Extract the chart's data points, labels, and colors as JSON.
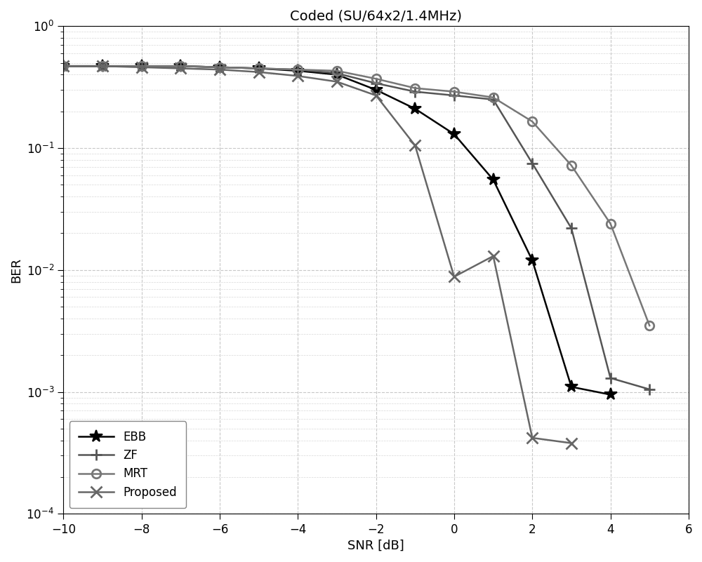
{
  "title": "Coded (SU/64x2/1.4MHz)",
  "xlabel": "SNR [dB]",
  "ylabel": "BER",
  "xlim": [
    -10,
    6
  ],
  "ylim": [
    0.0001,
    1.0
  ],
  "xticks": [
    -10,
    -8,
    -6,
    -4,
    -2,
    0,
    2,
    4,
    6
  ],
  "EBB": {
    "label": "EBB",
    "color": "#000000",
    "marker": "*",
    "markersize": 13,
    "linewidth": 1.8,
    "x": [
      -10,
      -9,
      -8,
      -7,
      -6,
      -5,
      -4,
      -3,
      -2,
      -1,
      0,
      1,
      2,
      3,
      4
    ],
    "y": [
      0.47,
      0.47,
      0.47,
      0.47,
      0.46,
      0.45,
      0.43,
      0.4,
      0.3,
      0.21,
      0.13,
      0.055,
      0.012,
      0.0011,
      0.00095
    ]
  },
  "ZF": {
    "label": "ZF",
    "color": "#555555",
    "marker": "+",
    "markersize": 12,
    "linewidth": 1.8,
    "x": [
      -10,
      -9,
      -8,
      -7,
      -6,
      -5,
      -4,
      -3,
      -2,
      -1,
      0,
      1,
      2,
      3,
      4,
      5
    ],
    "y": [
      0.47,
      0.47,
      0.47,
      0.47,
      0.46,
      0.45,
      0.44,
      0.41,
      0.34,
      0.29,
      0.27,
      0.25,
      0.075,
      0.022,
      0.0013,
      0.00105
    ]
  },
  "MRT": {
    "label": "MRT",
    "color": "#777777",
    "marker": "o",
    "markersize": 9,
    "linewidth": 1.8,
    "x": [
      -10,
      -9,
      -8,
      -7,
      -6,
      -5,
      -4,
      -3,
      -2,
      -1,
      0,
      1,
      2,
      3,
      4,
      5
    ],
    "y": [
      0.47,
      0.47,
      0.47,
      0.47,
      0.46,
      0.45,
      0.44,
      0.43,
      0.37,
      0.31,
      0.29,
      0.26,
      0.165,
      0.072,
      0.024,
      0.0035
    ]
  },
  "Proposed": {
    "label": "Proposed",
    "color": "#666666",
    "marker": "x",
    "markersize": 11,
    "linewidth": 1.8,
    "x": [
      -10,
      -9,
      -8,
      -7,
      -6,
      -5,
      -4,
      -3,
      -2,
      -1,
      0,
      1,
      2,
      3
    ],
    "y": [
      0.47,
      0.47,
      0.46,
      0.45,
      0.44,
      0.42,
      0.39,
      0.35,
      0.27,
      0.105,
      0.0088,
      0.013,
      0.00042,
      0.00038
    ]
  },
  "grid_major_color": "#c8c8c8",
  "grid_minor_color": "#d8d8d8",
  "grid_linestyle": "--",
  "bg_color": "#ffffff",
  "title_fontsize": 14,
  "label_fontsize": 13,
  "tick_fontsize": 12,
  "legend_fontsize": 12
}
